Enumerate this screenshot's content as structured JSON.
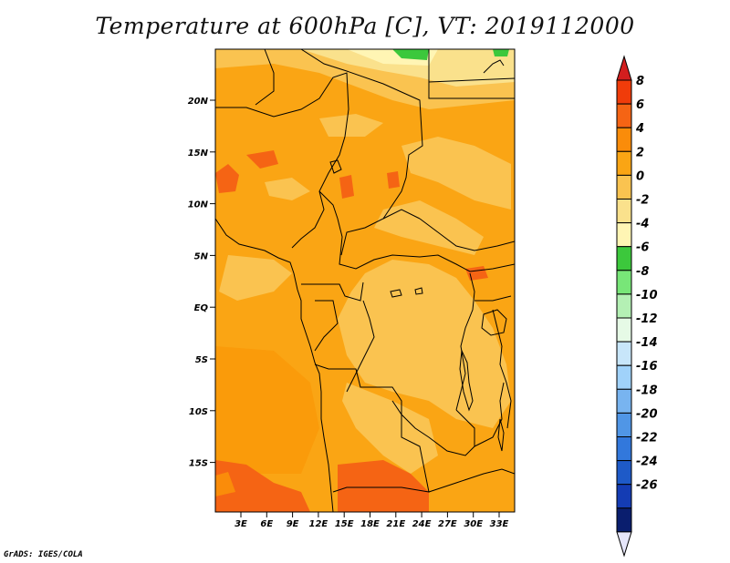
{
  "title": "Temperature at 600hPa [C], VT: 2019112000",
  "credit": "GrADS: IGES/COLA",
  "lat_labels": [
    "20N",
    "15N",
    "10N",
    "5N",
    "EQ",
    "5S",
    "10S",
    "15S"
  ],
  "lon_labels": [
    "3E",
    "6E",
    "9E",
    "12E",
    "15E",
    "18E",
    "21E",
    "24E",
    "27E",
    "30E",
    "33E"
  ],
  "colorbar": {
    "labels": [
      "8",
      "6",
      "4",
      "2",
      "0",
      "-2",
      "-4",
      "-6",
      "-8",
      "-10",
      "-12",
      "-14",
      "-16",
      "-18",
      "-20",
      "-22",
      "-24",
      "-26"
    ],
    "colors": [
      "#d21e1e",
      "#f03c0a",
      "#f56414",
      "#fa8c0a",
      "#faa514",
      "#fac350",
      "#fae18c",
      "#fff5b4",
      "#3cc83c",
      "#78e678",
      "#b4f0b4",
      "#e6fae6",
      "#c8e6fa",
      "#a0d2fa",
      "#78b4f0",
      "#5096e6",
      "#3278dc",
      "#1e5ac8",
      "#143cb4",
      "#0a1e6e",
      "#e6e6fa"
    ]
  }
}
